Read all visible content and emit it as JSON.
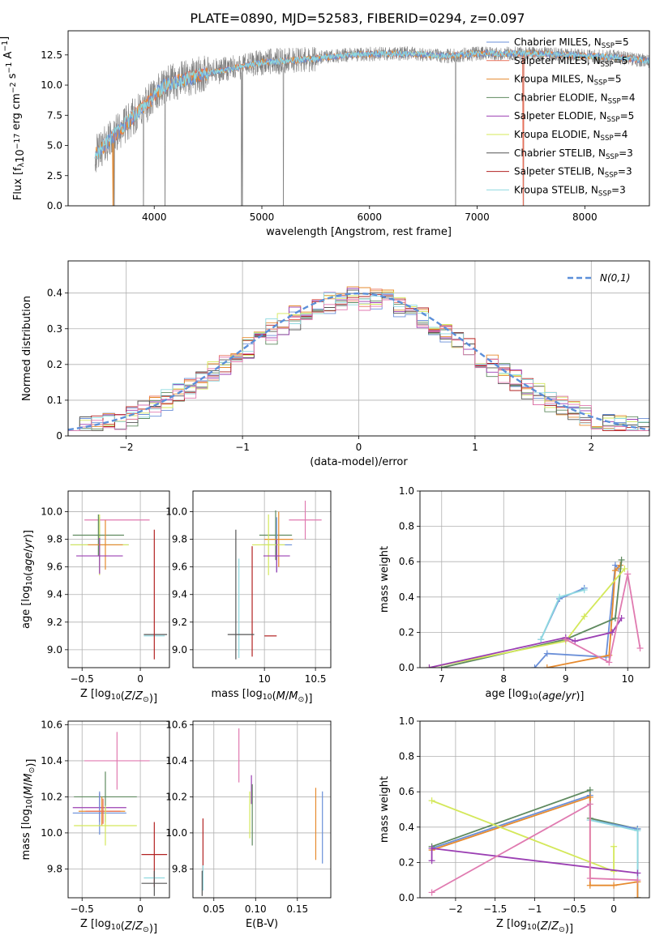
{
  "figure": {
    "title": "PLATE=0890, MJD=52583, FIBERID=0294, z=0.097"
  },
  "series": [
    {
      "key": "chabrier_miles",
      "label": "Chabrier MILES, N",
      "nssp": "=5",
      "color": "#6a8fd8"
    },
    {
      "key": "salpeter_miles",
      "label": "Salpeter MILES, N",
      "nssp": "=5",
      "color": "#e8705a"
    },
    {
      "key": "kroupa_miles",
      "label": "Kroupa MILES, N",
      "nssp": "=5",
      "color": "#e68a2e"
    },
    {
      "key": "chabrier_elodie",
      "label": "Chabrier ELODIE, N",
      "nssp": "=4",
      "color": "#5f8a5f"
    },
    {
      "key": "salpeter_elodie",
      "label": "Salpeter ELODIE, N",
      "nssp": "=5",
      "color": "#9b3fb3"
    },
    {
      "key": "kroupa_elodie",
      "label": "Kroupa ELODIE, N",
      "nssp": "=4",
      "color": "#d4e85a"
    },
    {
      "key": "chabrier_stelib",
      "label": "Chabrier STELIB, N",
      "nssp": "=3",
      "color": "#555555"
    },
    {
      "key": "salpeter_stelib",
      "label": "Salpeter STELIB, N",
      "nssp": "=3",
      "color": "#b22222"
    },
    {
      "key": "kroupa_stelib",
      "label": "Kroupa STELIB, N",
      "nssp": "=3",
      "color": "#8fd9e0"
    }
  ],
  "extra_colors": {
    "pink": "#e07ab0"
  },
  "chart_data": [
    {
      "id": "spectrum",
      "type": "line",
      "xlabel": "wavelength [Angstrom, rest frame]",
      "xlim": [
        3200,
        8600
      ],
      "ylim": [
        0,
        14.5
      ],
      "xticks": [
        4000,
        5000,
        6000,
        7000,
        8000
      ],
      "yticks": [
        0.0,
        2.5,
        5.0,
        7.5,
        10.0,
        12.5
      ],
      "grid": false,
      "legend": "right",
      "data_range": [
        3450,
        8600
      ],
      "spectrum_knots": {
        "x": [
          3450,
          3600,
          3800,
          3950,
          4100,
          4300,
          4500,
          4800,
          5000,
          5200,
          5500,
          5800,
          6100,
          6400,
          6700,
          7000,
          7300,
          7600,
          8000,
          8300,
          8600
        ],
        "y": [
          4.2,
          5.6,
          7.3,
          8.6,
          10.0,
          10.5,
          11.0,
          11.5,
          11.9,
          12.0,
          12.2,
          12.5,
          12.6,
          12.6,
          12.4,
          12.6,
          12.6,
          12.6,
          12.4,
          12.3,
          12.0
        ]
      }
    },
    {
      "id": "residuals",
      "type": "histogram",
      "xlabel": "(data-model)/error",
      "ylabel": "Normed distribution",
      "xlim": [
        -2.5,
        2.5
      ],
      "ylim": [
        0,
        0.49
      ],
      "xticks": [
        -2,
        -1,
        0,
        1,
        2
      ],
      "yticks": [
        0.0,
        0.1,
        0.2,
        0.3,
        0.4
      ],
      "grid": true,
      "legend": "top-right",
      "gaussian_label": "N(0,1)",
      "gaussian": {
        "mean": 0,
        "sigma": 1
      },
      "bins": 50
    },
    {
      "id": "age_vs_z",
      "type": "errorbar",
      "xlabel": "Z [log10(Z/Z⊙)]",
      "ylabel": "age  [log10(age/yr)]",
      "xlim": [
        -0.62,
        0.25
      ],
      "ylim": [
        8.87,
        10.15
      ],
      "xticks": [
        -0.5,
        0.0
      ],
      "ytick_labels": [
        "9.0",
        "9.2",
        "9.4",
        "9.6",
        "9.8",
        "10.0"
      ],
      "yticks": [
        9.0,
        9.2,
        9.4,
        9.6,
        9.8,
        10.0
      ],
      "grid": true,
      "points": [
        {
          "c": "pink",
          "x": -0.2,
          "xe": 0.28,
          "y": 9.94,
          "ye": 0.0
        },
        {
          "c": "chabrier_miles",
          "x": -0.35,
          "xe": 0.25,
          "y": 9.76,
          "ye": 0.2
        },
        {
          "c": "kroupa_elodie",
          "x": -0.35,
          "xe": 0.25,
          "y": 9.76,
          "ye": 0.22
        },
        {
          "c": "chabrier_elodie",
          "x": -0.36,
          "xe": 0.22,
          "y": 9.83,
          "ye": 0.15
        },
        {
          "c": "kroupa_miles",
          "x": -0.3,
          "xe": 0.15,
          "y": 9.76,
          "ye": 0.18
        },
        {
          "c": "salpeter_elodie",
          "x": -0.35,
          "xe": 0.2,
          "y": 9.68,
          "ye": 0.13
        },
        {
          "c": "chabrier_stelib",
          "x": 0.13,
          "xe": 0.1,
          "y": 9.11,
          "ye": 0.0
        },
        {
          "c": "kroupa_stelib",
          "x": 0.12,
          "xe": 0.09,
          "y": 9.1,
          "ye": 0.0
        },
        {
          "c": "salpeter_stelib",
          "x": 0.12,
          "xe": 0.0,
          "y": 9.4,
          "ye": 0.47
        }
      ]
    },
    {
      "id": "age_vs_mass",
      "type": "errorbar",
      "xlabel": "mass [log10(M/M⊙)]",
      "xlim": [
        9.3,
        10.65
      ],
      "ylim": [
        8.87,
        10.15
      ],
      "xticks": [
        10.0,
        10.5
      ],
      "ytick_labels": [
        "9.0",
        "9.2",
        "9.4",
        "9.6",
        "9.8",
        "10.0"
      ],
      "yticks": [
        9.0,
        9.2,
        9.4,
        9.6,
        9.8,
        10.0
      ],
      "grid": true,
      "points": [
        {
          "c": "pink",
          "x": 10.4,
          "xe": 0.16,
          "y": 9.94,
          "ye": 0.14
        },
        {
          "c": "chabrier_elodie",
          "x": 10.11,
          "xe": 0.16,
          "y": 9.83,
          "ye": 0.18
        },
        {
          "c": "kroupa_miles",
          "x": 10.14,
          "xe": 0.14,
          "y": 9.8,
          "ye": 0.2
        },
        {
          "c": "chabrier_miles",
          "x": 10.12,
          "xe": 0.15,
          "y": 9.76,
          "ye": 0.2
        },
        {
          "c": "kroupa_elodie",
          "x": 10.04,
          "xe": 0.16,
          "y": 9.76,
          "ye": 0.22
        },
        {
          "c": "salpeter_elodie",
          "x": 10.12,
          "xe": 0.13,
          "y": 9.68,
          "ye": 0.12
        },
        {
          "c": "chabrier_stelib",
          "x": 9.72,
          "xe": 0.0,
          "y": 9.4,
          "ye": 0.47
        },
        {
          "c": "kroupa_stelib",
          "x": 9.75,
          "xe": 0.0,
          "y": 9.3,
          "ye": 0.36
        },
        {
          "c": "salpeter_stelib",
          "x": 9.88,
          "xe": 0.0,
          "y": 9.35,
          "ye": 0.4
        },
        {
          "c": "chabrier_stelib",
          "x": 9.77,
          "xe": 0.13,
          "y": 9.11,
          "ye": 0.0
        },
        {
          "c": "salpeter_stelib",
          "x": 10.06,
          "xe": 0.06,
          "y": 9.1,
          "ye": 0.0
        }
      ]
    },
    {
      "id": "weight_vs_age",
      "type": "line",
      "xlabel": "age  [log10(age/yr)]",
      "ylabel": "mass weight",
      "xlim": [
        6.65,
        10.35
      ],
      "ylim": [
        0.0,
        1.0
      ],
      "xticks": [
        7,
        8,
        9,
        10
      ],
      "yticks": [
        0.0,
        0.2,
        0.4,
        0.6,
        0.8,
        1.0
      ],
      "grid": true,
      "lines": [
        {
          "c": "chabrier_miles",
          "x": [
            8.6,
            8.9,
            9.3
          ],
          "y": [
            0.16,
            0.39,
            0.45
          ]
        },
        {
          "c": "kroupa_stelib",
          "x": [
            8.6,
            8.9,
            9.3
          ],
          "y": [
            0.16,
            0.4,
            0.44
          ]
        },
        {
          "c": "chabrier_miles",
          "x": [
            8.5,
            8.7,
            9.65,
            9.8,
            9.85
          ],
          "y": [
            0.0,
            0.08,
            0.06,
            0.58,
            0.56
          ]
        },
        {
          "c": "kroupa_miles",
          "x": [
            8.7,
            9.7,
            9.8,
            9.88
          ],
          "y": [
            0.0,
            0.07,
            0.55,
            0.58
          ]
        },
        {
          "c": "chabrier_elodie",
          "x": [
            7.0,
            9.0,
            9.8,
            9.9
          ],
          "y": [
            0.0,
            0.16,
            0.28,
            0.61
          ]
        },
        {
          "c": "kroupa_elodie",
          "x": [
            6.8,
            9.0,
            9.3,
            9.95
          ],
          "y": [
            0.0,
            0.15,
            0.29,
            0.56
          ]
        },
        {
          "c": "salpeter_elodie",
          "x": [
            6.8,
            9.0,
            9.15,
            9.75,
            9.9
          ],
          "y": [
            0.0,
            0.17,
            0.15,
            0.2,
            0.28
          ]
        },
        {
          "c": "pink",
          "x": [
            9.0,
            9.7,
            10.0,
            10.2
          ],
          "y": [
            0.16,
            0.03,
            0.53,
            0.11
          ]
        }
      ]
    },
    {
      "id": "mass_vs_z",
      "type": "errorbar",
      "xlabel": "Z [log10(Z/Z⊙)]",
      "ylabel": "mass [log10(M/M⊙)]",
      "xlim": [
        -0.62,
        0.25
      ],
      "ylim": [
        9.64,
        10.62
      ],
      "xticks": [
        -0.5,
        0.0
      ],
      "ytick_labels": [
        "9.8",
        "10.0",
        "10.2",
        "10.4",
        "10.6"
      ],
      "yticks": [
        9.8,
        10.0,
        10.2,
        10.4,
        10.6
      ],
      "grid": true,
      "points": [
        {
          "c": "pink",
          "x": -0.2,
          "xe": 0.28,
          "y": 10.4,
          "ye": 0.16
        },
        {
          "c": "chabrier_elodie",
          "x": -0.3,
          "xe": 0.27,
          "y": 10.2,
          "ye": 0.14
        },
        {
          "c": "salpeter_elodie",
          "x": -0.35,
          "xe": 0.23,
          "y": 10.14,
          "ye": 0.08
        },
        {
          "c": "chabrier_miles",
          "x": -0.35,
          "xe": 0.23,
          "y": 10.11,
          "ye": 0.12
        },
        {
          "c": "kroupa_miles",
          "x": -0.33,
          "xe": 0.2,
          "y": 10.12,
          "ye": 0.08
        },
        {
          "c": "salpeter_miles",
          "x": -0.32,
          "xe": 0.15,
          "y": 10.12,
          "ye": 0.07
        },
        {
          "c": "kroupa_elodie",
          "x": -0.3,
          "xe": 0.27,
          "y": 10.04,
          "ye": 0.11
        },
        {
          "c": "salpeter_stelib",
          "x": 0.12,
          "xe": 0.11,
          "y": 9.88,
          "ye": 0.18
        },
        {
          "c": "kroupa_stelib",
          "x": 0.12,
          "xe": 0.09,
          "y": 9.75,
          "ye": 0.0
        },
        {
          "c": "chabrier_stelib",
          "x": 0.12,
          "xe": 0.11,
          "y": 9.72,
          "ye": 0.07
        }
      ]
    },
    {
      "id": "mass_vs_ebv",
      "type": "errorbar",
      "xlabel": "E(B-V)",
      "xlim": [
        0.025,
        0.19
      ],
      "ylim": [
        9.64,
        10.62
      ],
      "xticks": [
        0.05,
        0.1,
        0.15
      ],
      "xtick_labels": [
        "0.05",
        "0.10",
        "0.15"
      ],
      "ytick_labels": [
        "9.8",
        "10.0",
        "10.2",
        "10.4",
        "10.6"
      ],
      "yticks": [
        9.8,
        10.0,
        10.2,
        10.4,
        10.6
      ],
      "grid": true,
      "points": [
        {
          "c": "pink",
          "x": 0.08,
          "xe": 0.0,
          "y": 10.43,
          "ye": 0.15
        },
        {
          "c": "salpeter_elodie",
          "x": 0.095,
          "xe": 0.0,
          "y": 10.24,
          "ye": 0.08
        },
        {
          "c": "kroupa_elodie",
          "x": 0.093,
          "xe": 0.0,
          "y": 10.1,
          "ye": 0.13
        },
        {
          "c": "chabrier_elodie",
          "x": 0.096,
          "xe": 0.0,
          "y": 10.1,
          "ye": 0.17
        },
        {
          "c": "kroupa_miles",
          "x": 0.172,
          "xe": 0.0,
          "y": 10.05,
          "ye": 0.2
        },
        {
          "c": "chabrier_miles",
          "x": 0.18,
          "xe": 0.0,
          "y": 10.03,
          "ye": 0.2
        },
        {
          "c": "salpeter_stelib",
          "x": 0.037,
          "xe": 0.0,
          "y": 9.93,
          "ye": 0.15
        },
        {
          "c": "kroupa_stelib",
          "x": 0.037,
          "xe": 0.0,
          "y": 9.75,
          "ye": 0.07
        },
        {
          "c": "chabrier_stelib",
          "x": 0.036,
          "xe": 0.0,
          "y": 9.72,
          "ye": 0.07
        }
      ]
    },
    {
      "id": "weight_vs_z",
      "type": "line",
      "xlabel": "Z [log10(Z/Z⊙)]",
      "ylabel": "mass weight",
      "xlim": [
        -2.45,
        0.45
      ],
      "ylim": [
        0.0,
        1.0
      ],
      "xticks": [
        -2.0,
        -1.5,
        -1.0,
        -0.5,
        0.0
      ],
      "yticks": [
        0.0,
        0.2,
        0.4,
        0.6,
        0.8,
        1.0
      ],
      "grid": true,
      "lines": [
        {
          "c": "chabrier_elodie",
          "x": [
            -2.3,
            -0.3,
            -0.3,
            0.3,
            0.3
          ],
          "y": [
            0.29,
            0.61,
            0.45,
            0.39,
            0.0
          ]
        },
        {
          "c": "chabrier_miles",
          "x": [
            -2.3,
            -0.3,
            -0.3,
            0.3,
            0.3
          ],
          "y": [
            0.28,
            0.58,
            0.44,
            0.39,
            0.0
          ]
        },
        {
          "c": "kroupa_stelib",
          "x": [
            -0.3,
            0.3,
            0.3
          ],
          "y": [
            0.44,
            0.38,
            0.0
          ]
        },
        {
          "c": "kroupa_miles",
          "x": [
            -2.3,
            -0.3,
            -0.3,
            0.0,
            0.3,
            0.3
          ],
          "y": [
            0.27,
            0.57,
            0.07,
            0.07,
            0.09,
            0.0
          ]
        },
        {
          "c": "kroupa_elodie",
          "x": [
            -2.3,
            0.0,
            0.0
          ],
          "y": [
            0.55,
            0.15,
            0.29
          ]
        },
        {
          "c": "salpeter_elodie",
          "x": [
            -2.3,
            -2.3,
            0.3
          ],
          "y": [
            0.21,
            0.28,
            0.14
          ]
        },
        {
          "c": "pink",
          "x": [
            -2.3,
            -0.3,
            -0.3,
            0.3
          ],
          "y": [
            0.03,
            0.53,
            0.11,
            0.1
          ]
        }
      ]
    }
  ]
}
